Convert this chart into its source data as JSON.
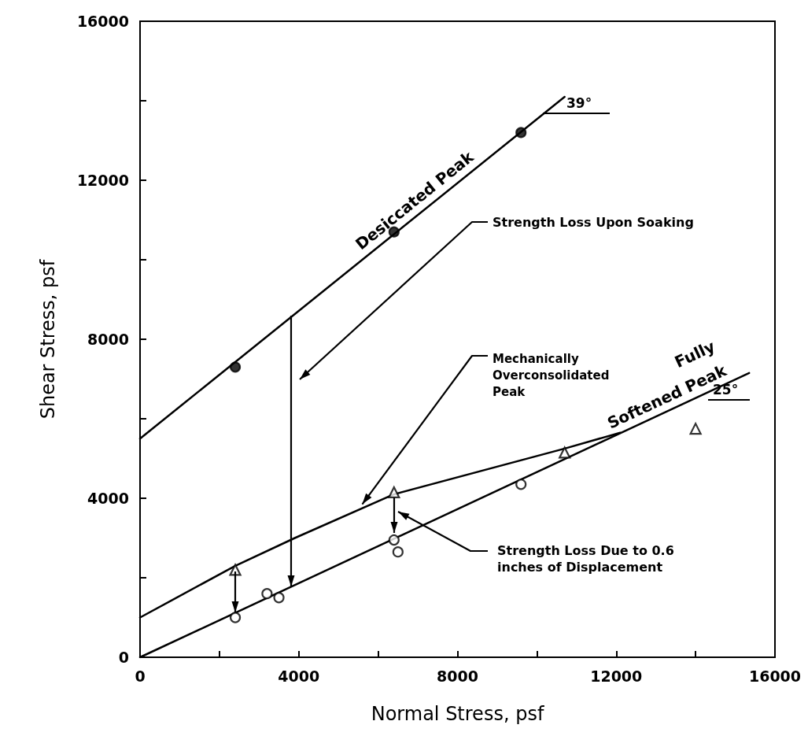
{
  "chart_data": {
    "type": "line",
    "xlabel": "Normal Stress, psf",
    "ylabel": "Shear Stress, psf",
    "xlim": [
      0,
      16000
    ],
    "ylim": [
      0,
      16000
    ],
    "xticks": [
      0,
      {
        "value": 2000,
        "label": null
      },
      4000,
      {
        "value": 6000,
        "label": null
      },
      8000,
      {
        "value": 10000,
        "label": null
      },
      12000,
      {
        "value": 14000,
        "label": null
      },
      16000
    ],
    "yticks": [
      0,
      {
        "value": 2000,
        "label": null
      },
      4000,
      {
        "value": 6000,
        "label": null
      },
      8000,
      {
        "value": 10000,
        "label": null
      },
      12000,
      {
        "value": 14000,
        "label": null
      },
      16000
    ],
    "grid": false,
    "legend": false,
    "series": [
      {
        "name": "Desiccated Peak",
        "marker": "none",
        "color": "#000000",
        "x": [
          0,
          10700
        ],
        "values": [
          5500,
          14100
        ]
      },
      {
        "name": "Fully\nSoftened Peak",
        "marker": "none",
        "color": "#000000",
        "x": [
          0,
          15350
        ],
        "values": [
          0,
          7150
        ]
      },
      {
        "marker": "none",
        "color": "#000000",
        "x": [
          0,
          2400,
          3900,
          6400,
          10700,
          12100
        ],
        "values": [
          1000,
          2300,
          3000,
          4100,
          5250,
          5650
        ]
      },
      {
        "type": "scatter",
        "marker": "circle",
        "color": "#000000",
        "x": [
          2400,
          6400,
          9600
        ],
        "values": [
          7300,
          10700,
          13200
        ]
      },
      {
        "type": "scatter",
        "marker": "circle",
        "color": "#ffffff",
        "x": [
          2400,
          3200,
          3500,
          6400,
          6500,
          9600
        ],
        "values": [
          1000,
          1600,
          1500,
          2950,
          2650,
          4350
        ]
      },
      {
        "type": "scatter",
        "marker": "triangle",
        "color": "#ffffff",
        "x": [
          2400,
          6400,
          10700,
          14000
        ],
        "values": [
          2200,
          4150,
          5150,
          5750
        ]
      }
    ],
    "annotations": [
      "Strength Loss Upon Soaking",
      {
        "text": "Mechanically\nOverconsolidated\nPeak",
        "x": 5600,
        "y": 3850
      },
      "Strength Loss Due to 0.6\ninches of Displacement",
      "39°",
      "25°"
    ]
  }
}
